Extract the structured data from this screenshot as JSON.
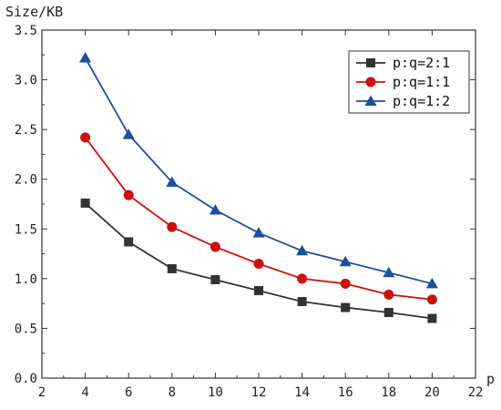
{
  "chart_data": {
    "type": "line",
    "xlabel": "p",
    "ylabel": "Size/KB",
    "xlim": [
      2,
      22
    ],
    "ylim": [
      0,
      3.5
    ],
    "xticks": [
      2,
      4,
      6,
      8,
      10,
      12,
      14,
      16,
      18,
      20,
      22
    ],
    "yticks": [
      "0.0",
      "0.5",
      "1.0",
      "1.5",
      "2.0",
      "2.5",
      "3.0",
      "3.5"
    ],
    "x": [
      4,
      6,
      8,
      10,
      12,
      14,
      16,
      18,
      20
    ],
    "grid": false,
    "legend_position": "top-right",
    "series": [
      {
        "name": "p:q=2:1",
        "marker": "square",
        "color": "#333333",
        "values": [
          1.76,
          1.37,
          1.1,
          0.99,
          0.88,
          0.77,
          0.71,
          0.66,
          0.6
        ]
      },
      {
        "name": "p:q=1:1",
        "marker": "circle",
        "color": "#cc1111",
        "values": [
          2.42,
          1.84,
          1.52,
          1.32,
          1.15,
          1.0,
          0.95,
          0.84,
          0.79
        ]
      },
      {
        "name": "p:q=1:2",
        "marker": "triangle",
        "color": "#1f4e9c",
        "values": [
          3.22,
          2.45,
          1.97,
          1.69,
          1.46,
          1.28,
          1.17,
          1.06,
          0.95
        ]
      }
    ]
  }
}
